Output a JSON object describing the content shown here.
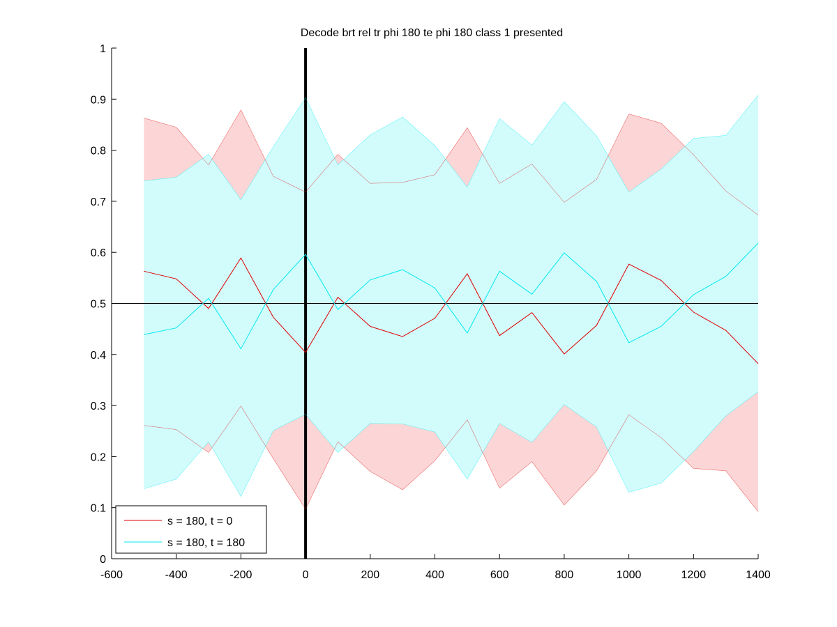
{
  "chart_data": {
    "type": "line",
    "title": "Decode brt rel tr phi 180 te phi 180  class 1 presented",
    "xlabel": "",
    "ylabel": "",
    "xlim": [
      -600,
      1400
    ],
    "ylim": [
      0,
      1
    ],
    "xticks": [
      -600,
      -400,
      -200,
      0,
      200,
      400,
      600,
      800,
      1000,
      1200,
      1400
    ],
    "xtick_labels": [
      "-600",
      "-400",
      "-200",
      "0",
      "200",
      "400",
      "600",
      "800",
      "1000",
      "1200",
      "1400"
    ],
    "yticks": [
      0,
      0.1,
      0.2,
      0.3,
      0.4,
      0.5,
      0.6,
      0.7,
      0.8,
      0.9,
      1
    ],
    "ytick_labels": [
      "0",
      "0.1",
      "0.2",
      "0.3",
      "0.4",
      "0.5",
      "0.6",
      "0.7",
      "0.8",
      "0.9",
      "1"
    ],
    "grid": false,
    "legend_position": "bottom-left",
    "reference_lines": {
      "vertical_x": 0,
      "horizontal_y": 0.5
    },
    "x": [
      -500,
      -400,
      -300,
      -200,
      -100,
      0,
      100,
      200,
      300,
      400,
      500,
      600,
      700,
      800,
      900,
      1000,
      1100,
      1200,
      1300,
      1400
    ],
    "series": [
      {
        "name": "s = 180, t = 0",
        "color": "#e00000",
        "band_color": "#fcd6d6",
        "mean": [
          0.563,
          0.548,
          0.49,
          0.589,
          0.473,
          0.404,
          0.512,
          0.455,
          0.435,
          0.471,
          0.558,
          0.437,
          0.482,
          0.401,
          0.457,
          0.577,
          0.545,
          0.483,
          0.447,
          0.382
        ],
        "upper": [
          0.863,
          0.845,
          0.771,
          0.879,
          0.749,
          0.718,
          0.792,
          0.735,
          0.737,
          0.752,
          0.844,
          0.735,
          0.773,
          0.698,
          0.743,
          0.871,
          0.853,
          0.791,
          0.72,
          0.673
        ],
        "lower": [
          0.261,
          0.253,
          0.208,
          0.299,
          0.196,
          0.097,
          0.229,
          0.171,
          0.135,
          0.192,
          0.272,
          0.138,
          0.19,
          0.105,
          0.172,
          0.282,
          0.237,
          0.177,
          0.172,
          0.092
        ]
      },
      {
        "name": "s = 180, t = 180",
        "color": "#00e8f0",
        "band_color": "#d2fcfc",
        "mean": [
          0.439,
          0.452,
          0.51,
          0.411,
          0.527,
          0.596,
          0.488,
          0.546,
          0.566,
          0.53,
          0.442,
          0.563,
          0.518,
          0.599,
          0.543,
          0.423,
          0.455,
          0.517,
          0.553,
          0.618
        ],
        "upper": [
          0.74,
          0.747,
          0.792,
          0.703,
          0.807,
          0.903,
          0.771,
          0.83,
          0.865,
          0.809,
          0.728,
          0.862,
          0.81,
          0.895,
          0.828,
          0.718,
          0.763,
          0.823,
          0.829,
          0.908
        ],
        "lower": [
          0.137,
          0.156,
          0.229,
          0.122,
          0.251,
          0.283,
          0.208,
          0.265,
          0.264,
          0.248,
          0.156,
          0.265,
          0.228,
          0.302,
          0.258,
          0.13,
          0.148,
          0.21,
          0.28,
          0.327
        ]
      }
    ]
  }
}
